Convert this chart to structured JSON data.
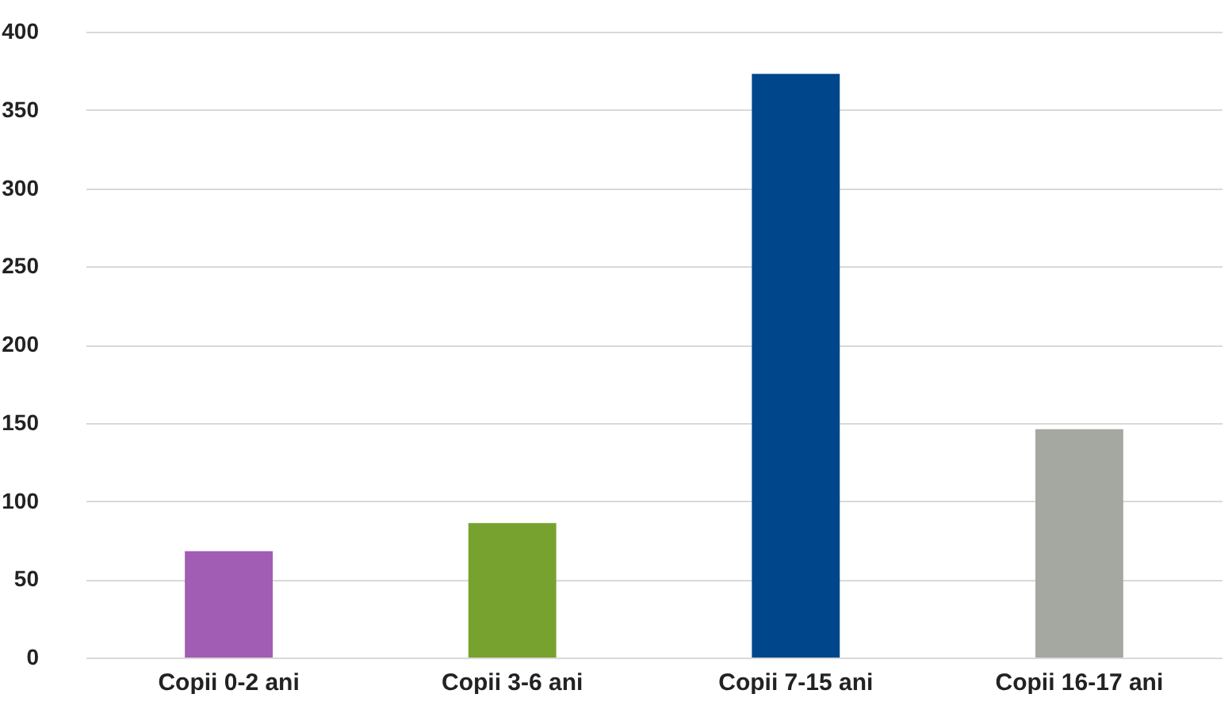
{
  "chart_data": {
    "type": "bar",
    "categories": [
      "Copii 0-2 ani",
      "Copii 3-6 ani",
      "Copii 7-15 ani",
      "Copii 16-17 ani"
    ],
    "values": [
      68,
      86,
      373,
      146
    ],
    "colors": [
      "#a05db3",
      "#78a22f",
      "#00468b",
      "#a5a8a0"
    ],
    "ylim": [
      0,
      400
    ],
    "yticks": [
      0,
      50,
      100,
      150,
      200,
      250,
      300,
      350,
      400
    ],
    "grid": "y"
  }
}
